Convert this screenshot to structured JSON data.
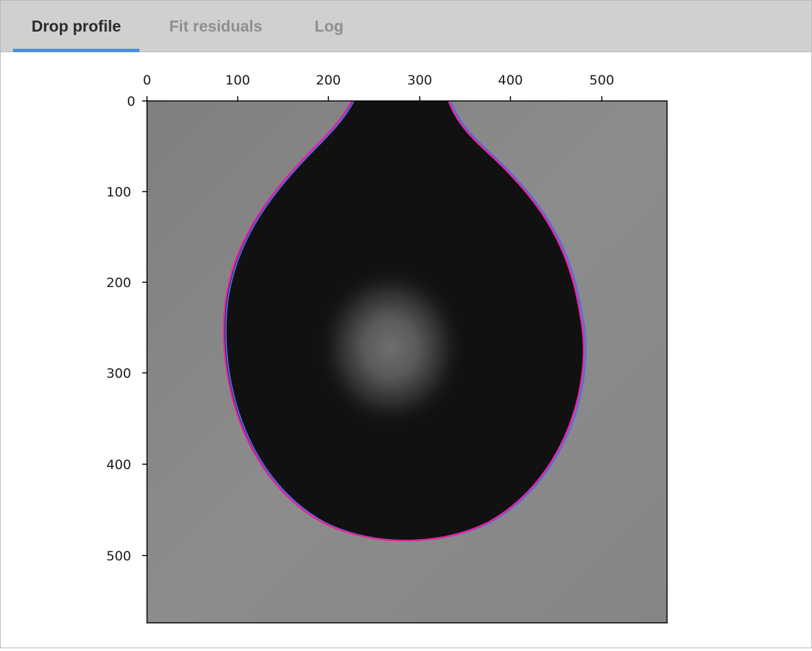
{
  "tabs": [
    {
      "label": "Drop profile",
      "active": true
    },
    {
      "label": "Fit residuals",
      "active": false
    },
    {
      "label": "Log",
      "active": false
    }
  ],
  "plot": {
    "x_ticks": [
      "0",
      "100",
      "200",
      "300",
      "400",
      "500"
    ],
    "y_ticks": [
      "0",
      "100",
      "200",
      "300",
      "400",
      "500"
    ],
    "x_range": [
      0,
      570
    ],
    "y_range": [
      0,
      570
    ],
    "image_description": "grayscale pendant drop photograph",
    "fit_curve_color": "#e8239a",
    "detected_edge_color": "#4a6cf0",
    "background_gray": "#8a8a8a",
    "drop_color": "#111111"
  }
}
